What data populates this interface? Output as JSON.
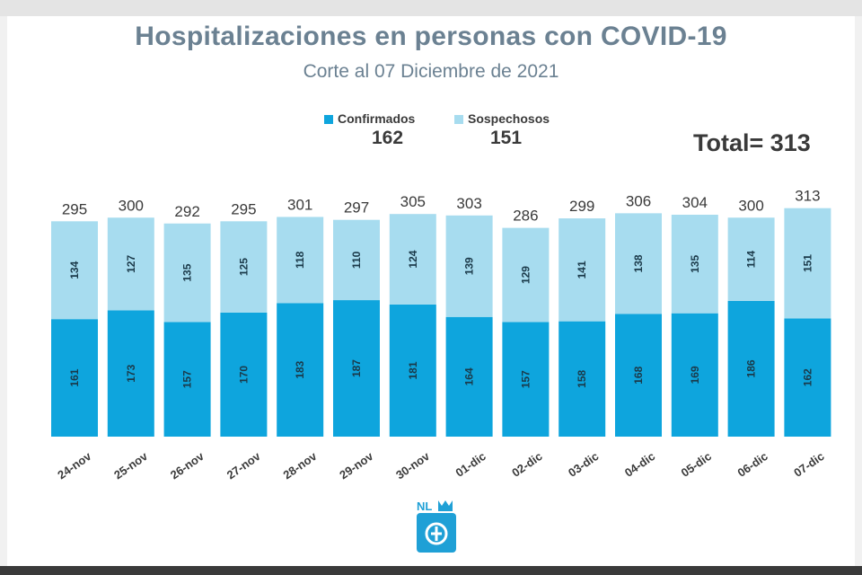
{
  "title": "Hospitalizaciones en personas con COVID-19",
  "subtitle": "Corte al 07 Diciembre de 2021",
  "total_label": "Total= 313",
  "logo_text": "NL",
  "colors": {
    "confirmados": "#0ea5dd",
    "sospechosos": "#a7dcef",
    "text": "#3a3a3a",
    "title": "#6b8192"
  },
  "legend": [
    {
      "label": "Confirmados",
      "value": "162"
    },
    {
      "label": "Sospechosos",
      "value": "151"
    }
  ],
  "chart_data": {
    "type": "bar",
    "stacked": true,
    "categories": [
      "24-nov",
      "25-nov",
      "26-nov",
      "27-nov",
      "28-nov",
      "29-nov",
      "30-nov",
      "01-dic",
      "02-dic",
      "03-dic",
      "04-dic",
      "05-dic",
      "06-dic",
      "07-dic"
    ],
    "series": [
      {
        "name": "Confirmados",
        "values": [
          161,
          173,
          157,
          170,
          183,
          187,
          181,
          164,
          157,
          158,
          168,
          169,
          186,
          162
        ]
      },
      {
        "name": "Sospechosos",
        "values": [
          134,
          127,
          135,
          125,
          118,
          110,
          124,
          139,
          129,
          141,
          138,
          135,
          114,
          151
        ]
      }
    ],
    "totals": [
      295,
      300,
      292,
      295,
      301,
      297,
      305,
      303,
      286,
      299,
      306,
      304,
      300,
      313
    ],
    "title": "Hospitalizaciones en personas con COVID-19",
    "subtitle": "Corte al 07 Diciembre de 2021",
    "legend_position": "top-center",
    "grid": false
  }
}
